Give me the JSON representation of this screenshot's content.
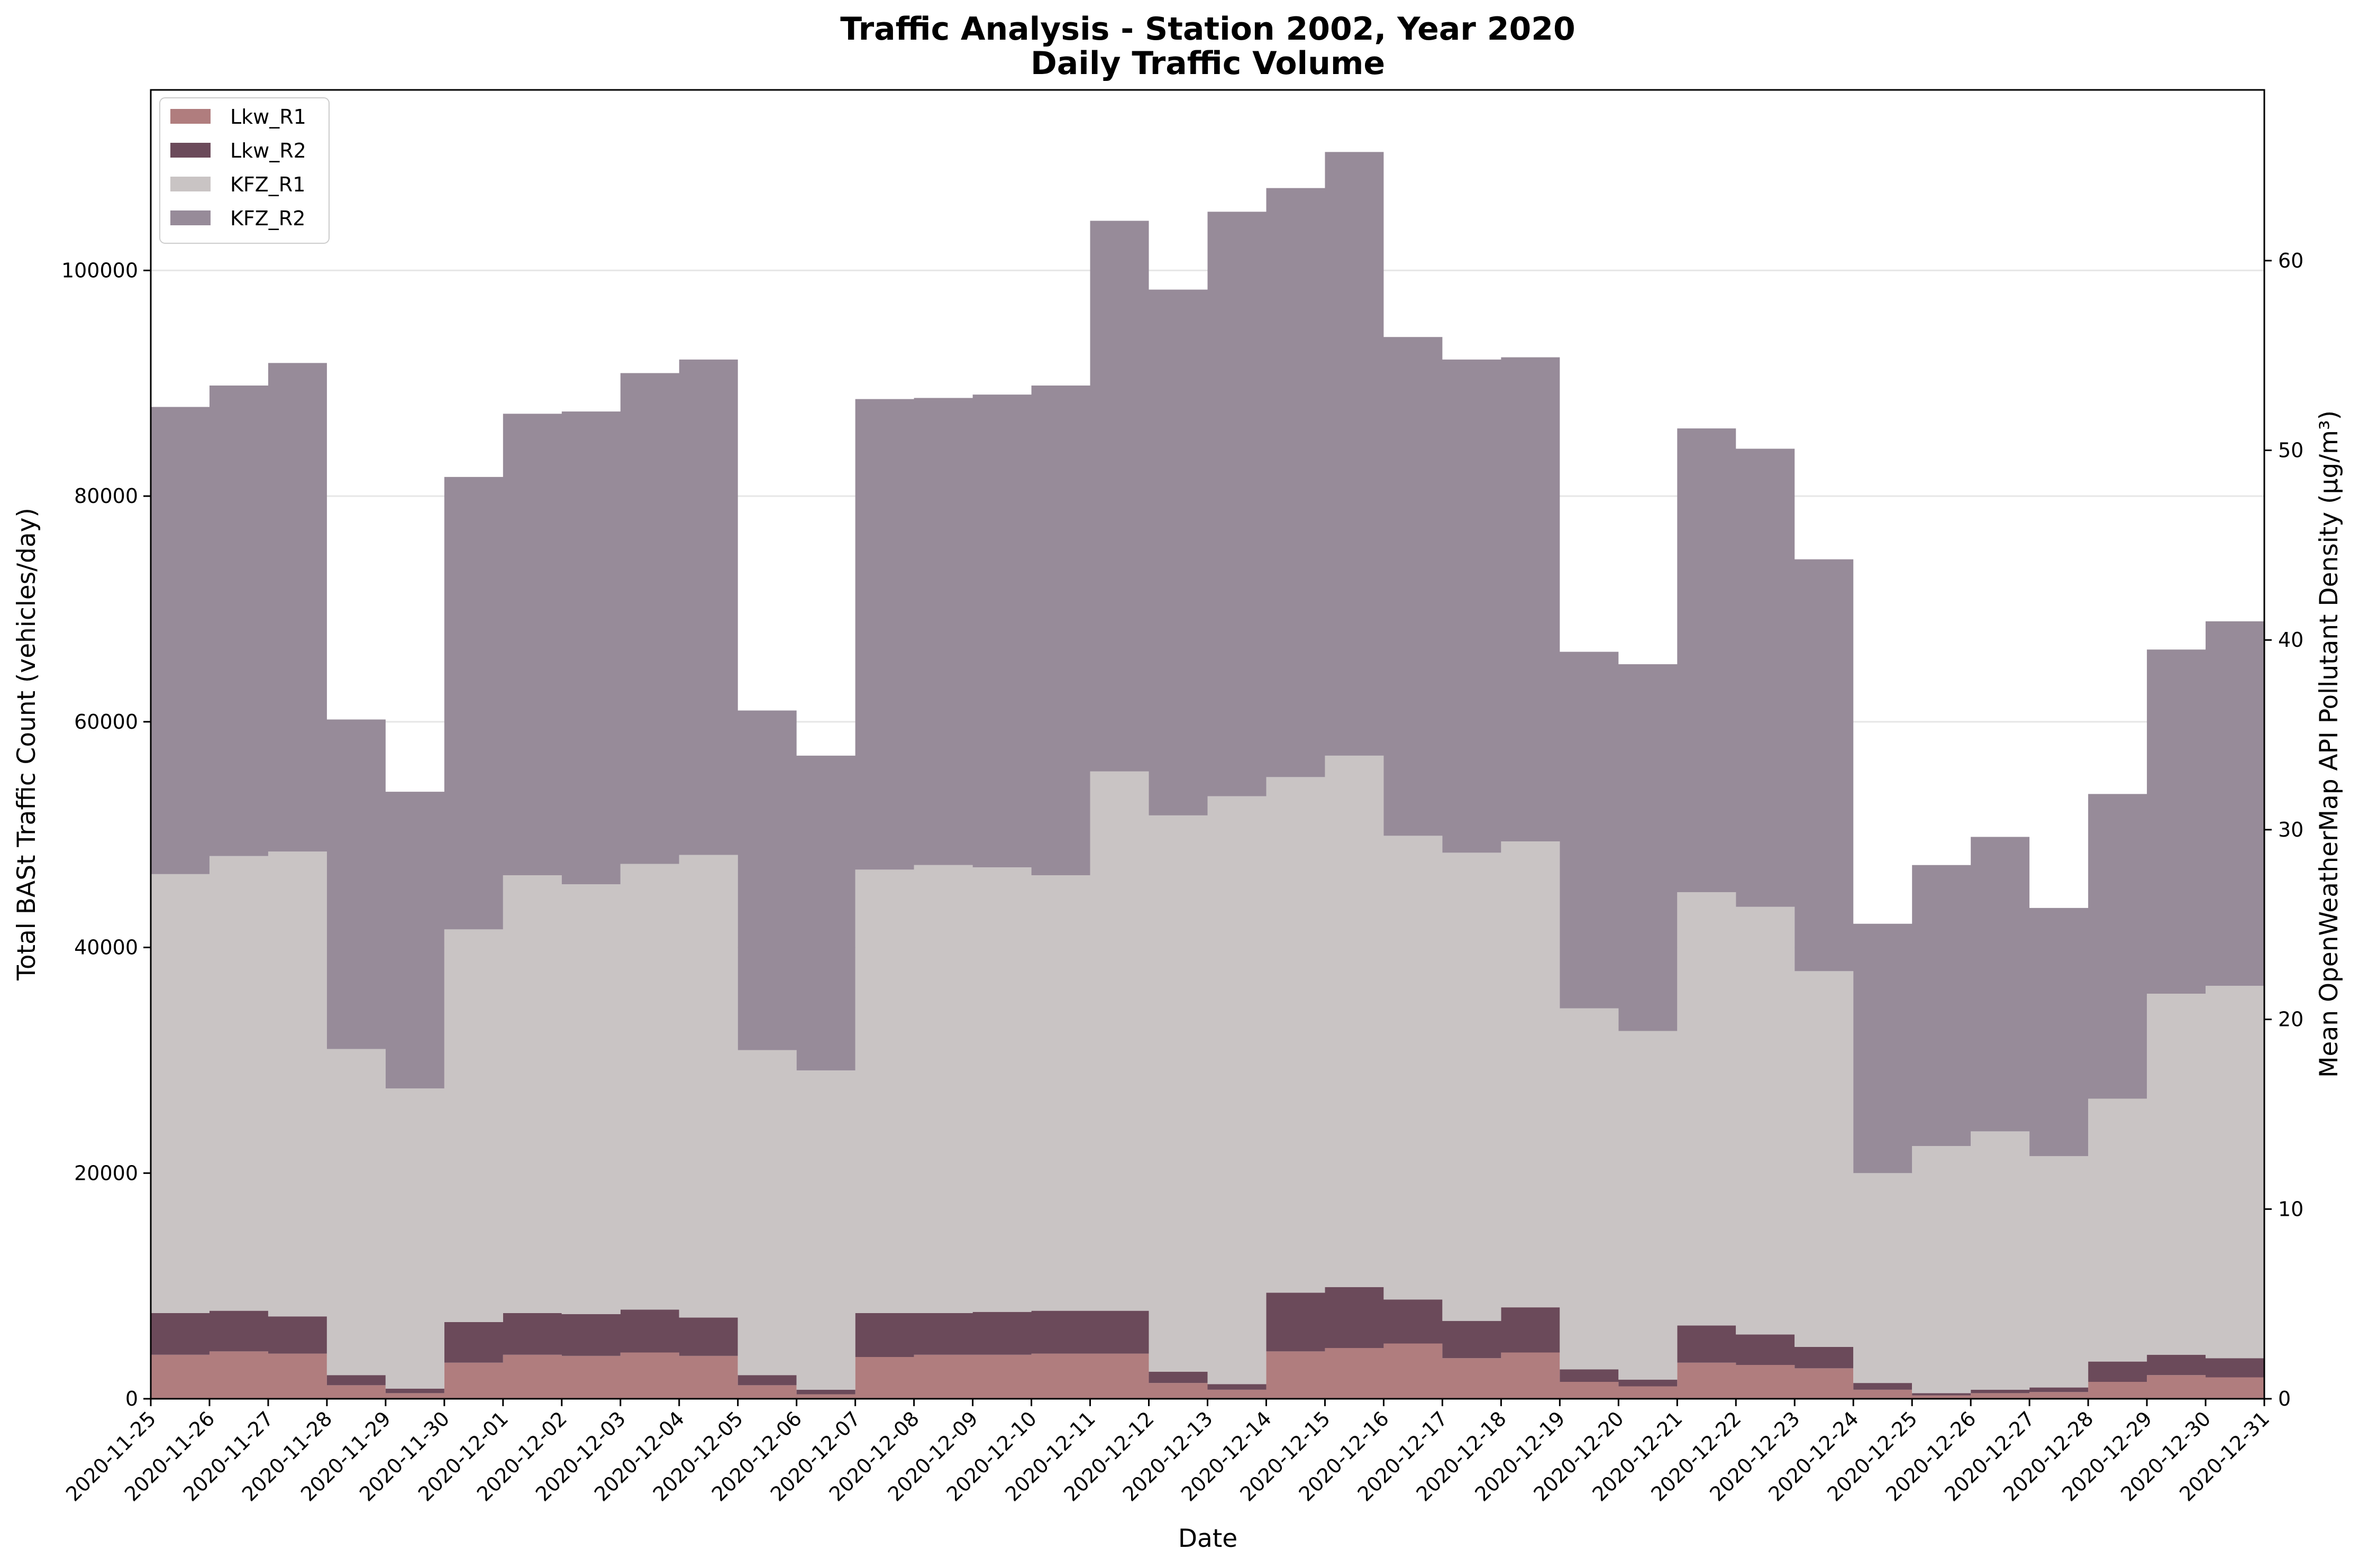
{
  "chart_data": {
    "type": "area",
    "step": "post",
    "title": "Traffic Analysis - Station 2002, Year 2020",
    "subtitle": "Daily Traffic Volume",
    "xlabel": "Date",
    "ylabel": "Total BASt Traffic Count (vehicles/day)",
    "y2label": "Mean OpenWeatherMap API Pollutant Density (µg/m³)",
    "ylim": [
      0,
      116000
    ],
    "y2lim": [
      0,
      69
    ],
    "yticks": [
      0,
      20000,
      40000,
      60000,
      80000,
      100000
    ],
    "yticks_labels": [
      "0",
      "20000",
      "40000",
      "60000",
      "80000",
      "100000"
    ],
    "y2ticks": [
      0,
      10,
      20,
      30,
      40,
      50,
      60
    ],
    "y2ticks_labels": [
      "0",
      "10",
      "20",
      "30",
      "40",
      "50",
      "60"
    ],
    "grid": "horizontal",
    "legend_position": "top-left",
    "x": [
      "2020-11-25",
      "2020-11-26",
      "2020-11-27",
      "2020-11-28",
      "2020-11-29",
      "2020-11-30",
      "2020-12-01",
      "2020-12-02",
      "2020-12-03",
      "2020-12-04",
      "2020-12-05",
      "2020-12-06",
      "2020-12-07",
      "2020-12-08",
      "2020-12-09",
      "2020-12-10",
      "2020-12-11",
      "2020-12-12",
      "2020-12-13",
      "2020-12-14",
      "2020-12-15",
      "2020-12-16",
      "2020-12-17",
      "2020-12-18",
      "2020-12-19",
      "2020-12-20",
      "2020-12-21",
      "2020-12-22",
      "2020-12-23",
      "2020-12-24",
      "2020-12-25",
      "2020-12-26",
      "2020-12-27",
      "2020-12-28",
      "2020-12-29",
      "2020-12-30",
      "2020-12-31"
    ],
    "series": [
      {
        "name": "Lkw_R1",
        "color": "#b07d7e",
        "values": [
          3900,
          4200,
          4000,
          1200,
          500,
          3200,
          3900,
          3800,
          4100,
          3800,
          1200,
          400,
          3700,
          3900,
          3900,
          4000,
          4000,
          1400,
          800,
          4200,
          4500,
          4900,
          3600,
          4100,
          1500,
          1100,
          3200,
          3000,
          2700,
          800,
          300,
          500,
          600,
          1500,
          2100,
          1900,
          600
        ]
      },
      {
        "name": "Lkw_R2",
        "color": "#6b4a5a",
        "values": [
          3700,
          3600,
          3300,
          900,
          400,
          3600,
          3700,
          3700,
          3800,
          3400,
          900,
          400,
          3900,
          3700,
          3800,
          3800,
          3800,
          1000,
          500,
          5200,
          5400,
          3900,
          3300,
          4000,
          1100,
          600,
          3300,
          2700,
          1900,
          600,
          200,
          300,
          400,
          1800,
          1800,
          1700,
          700
        ]
      },
      {
        "name": "KFZ_R1",
        "color": "#c9c4c4",
        "values": [
          38900,
          40300,
          41200,
          28900,
          26600,
          34800,
          38800,
          38100,
          39500,
          41000,
          28800,
          28300,
          39300,
          39700,
          39400,
          38600,
          47800,
          49300,
          52100,
          45700,
          47100,
          41100,
          41500,
          41300,
          32000,
          30900,
          38400,
          37900,
          33300,
          18600,
          21900,
          22900,
          20500,
          23300,
          32000,
          33000,
          20300
        ]
      },
      {
        "name": "KFZ_R2",
        "color": "#978b99",
        "values": [
          41400,
          41700,
          43300,
          29200,
          26300,
          40100,
          40900,
          41900,
          43500,
          43900,
          30100,
          27900,
          41700,
          41400,
          41900,
          43400,
          48800,
          46600,
          51800,
          52200,
          53500,
          44200,
          43700,
          42900,
          31600,
          32500,
          41100,
          40600,
          36500,
          22100,
          24900,
          26100,
          22000,
          27000,
          30500,
          32300,
          20400
        ]
      }
    ]
  }
}
